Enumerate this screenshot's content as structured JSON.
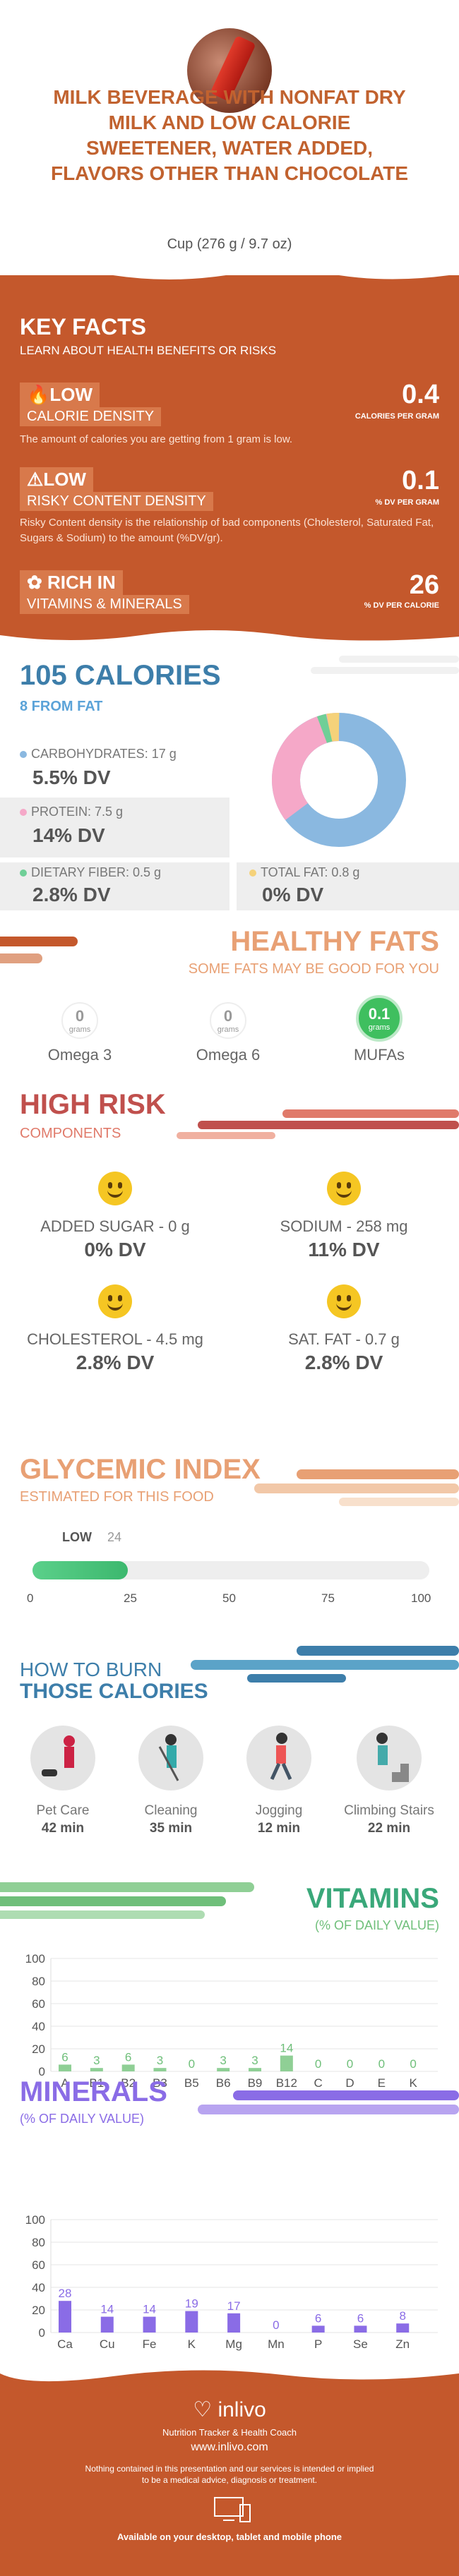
{
  "header": {
    "title_lines": [
      "MILK BEVERAGE WITH NONFAT DRY",
      "MILK AND LOW CALORIE",
      "SWEETENER, WATER ADDED,",
      "FLAVORS OTHER THAN CHOCOLATE"
    ],
    "serving": "Cup (276 g / 9.7 oz)"
  },
  "key_facts": {
    "title": "KEY FACTS",
    "subtitle": "LEARN ABOUT HEALTH BENEFITS OR RISKS",
    "calorie_density": {
      "level": "LOW",
      "label": "CALORIE DENSITY",
      "value": "0.4",
      "unit": "CALORIES PER GRAM",
      "desc": "The amount of calories you are getting from 1 gram is low."
    },
    "risky_content": {
      "level": "LOW",
      "label": "RISKY CONTENT DENSITY",
      "value": "0.1",
      "unit": "% DV PER GRAM",
      "desc": "Risky Content density is the relationship of bad components (Cholesterol, Saturated Fat, Sugars & Sodium) to the amount (%DV/gr)."
    },
    "vitamins": {
      "level": "RICH IN",
      "label": "VITAMINS & MINERALS",
      "value": "26",
      "unit": "% DV PER CALORIE"
    }
  },
  "calories": {
    "title": "105 CALORIES",
    "from_fat": "8 FROM FAT",
    "carbs_label": "CARBOHYDRATES: 17 g",
    "carbs_dv": "5.5% DV",
    "protein_label": "PROTEIN: 7.5 g",
    "protein_dv": "14% DV",
    "fiber_label": "DIETARY FIBER: 0.5 g",
    "fiber_dv": "2.8% DV",
    "fat_label": "TOTAL FAT: 0.8 g",
    "fat_dv": "0% DV",
    "colors": {
      "carbs": "#8ab8e0",
      "protein": "#f5a8c8",
      "fiber": "#6fcf97",
      "fat": "#f5d27a"
    }
  },
  "healthy_fats": {
    "title": "HEALTHY FATS",
    "subtitle": "SOME FATS MAY BE GOOD FOR YOU",
    "items": [
      {
        "value": "0",
        "unit": "grams",
        "name": "Omega 3"
      },
      {
        "value": "0",
        "unit": "grams",
        "name": "Omega 6"
      },
      {
        "value": "0.1",
        "unit": "grams",
        "name": "MUFAs"
      }
    ]
  },
  "high_risk": {
    "title": "HIGH RISK",
    "subtitle": "COMPONENTS",
    "items": [
      {
        "label": "ADDED SUGAR - 0 g",
        "dv": "0% DV"
      },
      {
        "label": "SODIUM - 258 mg",
        "dv": "11% DV"
      },
      {
        "label": "CHOLESTEROL - 4.5 mg",
        "dv": "2.8% DV"
      },
      {
        "label": "SAT. FAT - 0.7 g",
        "dv": "2.8% DV"
      }
    ]
  },
  "glycemic": {
    "title": "GLYCEMIC INDEX",
    "subtitle": "ESTIMATED FOR THIS FOOD",
    "level": "LOW",
    "value": 24,
    "value_label": "24",
    "ticks": [
      "0",
      "25",
      "50",
      "75",
      "100"
    ]
  },
  "burn": {
    "title_1": "HOW TO BURN",
    "title_2": "THOSE CALORIES",
    "items": [
      {
        "name": "Pet Care",
        "min": "42 min"
      },
      {
        "name": "Cleaning",
        "min": "35 min"
      },
      {
        "name": "Jogging",
        "min": "12 min"
      },
      {
        "name": "Climbing Stairs",
        "min": "22 min"
      }
    ]
  },
  "vitamins": {
    "title": "VITAMINS",
    "subtitle": "(% OF DAILY VALUE)"
  },
  "minerals": {
    "title": "MINERALS",
    "subtitle": "(% OF DAILY VALUE)"
  },
  "chart_data": [
    {
      "type": "bar",
      "title": "VITAMINS",
      "categories": [
        "A",
        "B1",
        "B2",
        "B3",
        "B5",
        "B6",
        "B9",
        "B12",
        "C",
        "D",
        "E",
        "K"
      ],
      "values": [
        6,
        3,
        6,
        3,
        0,
        3,
        3,
        14,
        0,
        0,
        0,
        0
      ],
      "ylim": [
        0,
        100
      ],
      "yticks": [
        "0",
        "20",
        "40",
        "60",
        "80",
        "100"
      ],
      "color": "#8fcf95",
      "label_color": "#6fbf7a"
    },
    {
      "type": "bar",
      "title": "MINERALS",
      "categories": [
        "Ca",
        "Cu",
        "Fe",
        "K",
        "Mg",
        "Mn",
        "P",
        "Se",
        "Zn"
      ],
      "values": [
        28,
        14,
        14,
        19,
        17,
        0,
        6,
        6,
        8
      ],
      "ylim": [
        0,
        100
      ],
      "yticks": [
        "0",
        "20",
        "40",
        "60",
        "80",
        "100"
      ],
      "color": "#8a6ce6",
      "label_color": "#8a6ce6"
    }
  ],
  "footer": {
    "brand": "inlivo",
    "tagline": "Nutrition Tracker & Health Coach",
    "url": "www.inlivo.com",
    "disclaimer_1": "Nothing contained in this presentation and our services is intended or implied",
    "disclaimer_2": "to be a medical advice, diagnosis or treatment.",
    "available": "Available on your desktop, tablet and mobile phone"
  }
}
